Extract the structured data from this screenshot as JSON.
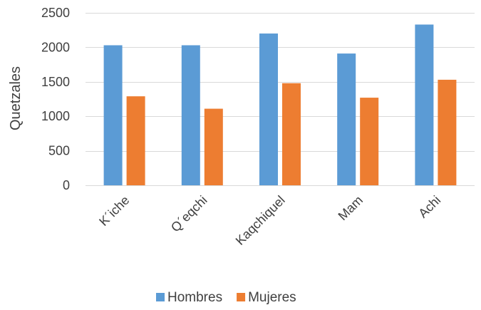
{
  "chart_data": {
    "type": "bar",
    "title": "",
    "xlabel": "",
    "ylabel": "Quetzales",
    "ylim": [
      0,
      2500
    ],
    "yticks": [
      0,
      500,
      1000,
      1500,
      2000,
      2500
    ],
    "grid": true,
    "legend_position": "bottom",
    "categories": [
      "K´iche",
      "Q´eqchi",
      "Kaqchiquel",
      "Mam",
      "Achi"
    ],
    "series": [
      {
        "name": "Hombres",
        "color": "#5B9BD5",
        "values": [
          2030,
          2030,
          2200,
          1910,
          2330
        ]
      },
      {
        "name": "Mujeres",
        "color": "#ED7D31",
        "values": [
          1290,
          1110,
          1480,
          1270,
          1530
        ]
      }
    ]
  }
}
